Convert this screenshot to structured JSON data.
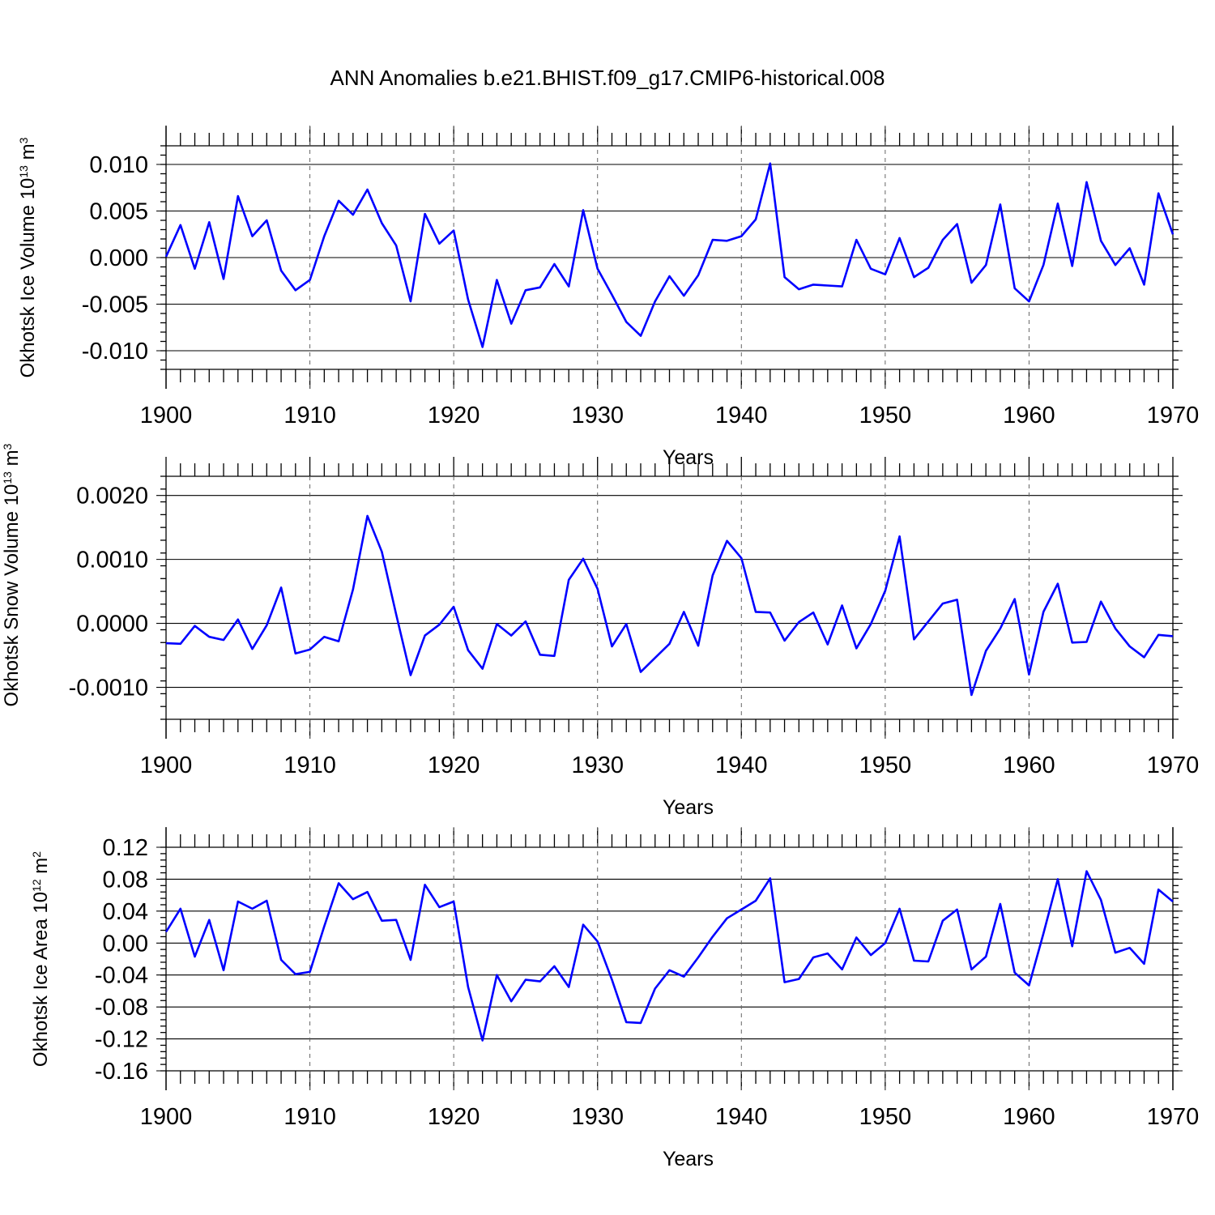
{
  "title": "ANN Anomalies b.e21.BHIST.f09_g17.CMIP6-historical.008",
  "line_color": "#0000ff",
  "chart_data": [
    {
      "type": "line",
      "ylabel": {
        "main": "Okhotsk Ice Volume 10",
        "exp": "13",
        "unit": " m",
        "unit_exp": "3"
      },
      "xlabel": "Years",
      "xlim": [
        1900,
        1970
      ],
      "ylim": [
        -0.012,
        0.012
      ],
      "x_ticks": [
        1900,
        1910,
        1920,
        1930,
        1940,
        1950,
        1960,
        1970
      ],
      "x_tick_labels": [
        "1900",
        "1910",
        "1920",
        "1930",
        "1940",
        "1950",
        "1960",
        "1970"
      ],
      "y_ticks": [
        0.01,
        0.005,
        0.0,
        -0.005,
        -0.01
      ],
      "y_tick_labels": [
        "0.010",
        "0.005",
        "0.000",
        "-0.005",
        "-0.010"
      ],
      "y_minor_step": 0.001,
      "vertical_gridlines": "dashed at decades",
      "series": [
        {
          "values": [
            0.0001,
            0.0035,
            -0.0012,
            0.0038,
            -0.0023,
            0.0066,
            0.0023,
            0.004,
            -0.0014,
            -0.0035,
            -0.0024,
            0.0023,
            0.0061,
            0.0046,
            0.0073,
            0.0037,
            0.0013,
            -0.0047,
            0.0047,
            0.0015,
            0.0029,
            -0.0045,
            -0.0096,
            -0.0024,
            -0.0071,
            -0.0035,
            -0.0032,
            -0.0007,
            -0.0031,
            0.0051,
            -0.0012,
            -0.004,
            -0.0069,
            -0.0084,
            -0.0047,
            -0.002,
            -0.0041,
            -0.0019,
            0.0019,
            0.0018,
            0.0023,
            0.0041,
            0.0101,
            -0.0021,
            -0.0034,
            -0.0029,
            -0.003,
            -0.0031,
            0.0019,
            -0.0012,
            -0.0018,
            0.0021,
            -0.0021,
            -0.0011,
            0.0019,
            0.0036,
            -0.0027,
            -0.0008,
            0.0057,
            -0.0033,
            -0.0047,
            -0.0008,
            0.0058,
            -0.0009,
            0.0081,
            0.0018,
            -0.0008,
            0.001,
            -0.0029,
            0.0069,
            0.0025
          ]
        }
      ]
    },
    {
      "type": "line",
      "ylabel": {
        "main": "Okhotsk Snow Volume 10",
        "exp": "13",
        "unit": " m",
        "unit_exp": "3"
      },
      "xlabel": "Years",
      "xlim": [
        1900,
        1970
      ],
      "ylim": [
        -0.0015,
        0.0023
      ],
      "x_ticks": [
        1900,
        1910,
        1920,
        1930,
        1940,
        1950,
        1960,
        1970
      ],
      "x_tick_labels": [
        "1900",
        "1910",
        "1920",
        "1930",
        "1940",
        "1950",
        "1960",
        "1970"
      ],
      "y_ticks": [
        0.002,
        0.001,
        0.0,
        -0.001
      ],
      "y_tick_labels": [
        "0.0020",
        "0.0010",
        "0.0000",
        "-0.0010"
      ],
      "y_minor_step": 0.0002,
      "vertical_gridlines": "dashed at decades",
      "series": [
        {
          "values": [
            -0.00031,
            -0.00032,
            -4e-05,
            -0.00021,
            -0.00026,
            6e-05,
            -0.0004,
            -3e-05,
            0.00056,
            -0.00047,
            -0.00041,
            -0.00021,
            -0.00028,
            0.00053,
            0.00168,
            0.00112,
            0.00014,
            -0.00081,
            -0.00019,
            -2e-05,
            0.00026,
            -0.00042,
            -0.00071,
            -1e-05,
            -0.00019,
            3e-05,
            -0.00049,
            -0.00051,
            0.00068,
            0.00101,
            0.00054,
            -0.00036,
            -1e-05,
            -0.00076,
            -0.00054,
            -0.00032,
            0.00018,
            -0.00035,
            0.00075,
            0.00129,
            0.00102,
            0.00018,
            0.00017,
            -0.00027,
            2e-05,
            0.00017,
            -0.00033,
            0.00028,
            -0.00039,
            -1e-05,
            0.00051,
            0.00136,
            -0.00025,
            3e-05,
            0.00031,
            0.00037,
            -0.00112,
            -0.00043,
            -8e-05,
            0.00038,
            -0.0008,
            0.00018,
            0.00062,
            -0.0003,
            -0.00029,
            0.00034,
            -8e-05,
            -0.00036,
            -0.00053,
            -0.00018,
            -0.0002
          ]
        }
      ]
    },
    {
      "type": "line",
      "ylabel": {
        "main": "Okhotsk Ice Area 10",
        "exp": "12",
        "unit": " m",
        "unit_exp": "2"
      },
      "xlabel": "Years",
      "xlim": [
        1900,
        1970
      ],
      "ylim": [
        -0.16,
        0.12
      ],
      "x_ticks": [
        1900,
        1910,
        1920,
        1930,
        1940,
        1950,
        1960,
        1970
      ],
      "x_tick_labels": [
        "1900",
        "1910",
        "1920",
        "1930",
        "1940",
        "1950",
        "1960",
        "1970"
      ],
      "y_ticks": [
        0.12,
        0.08,
        0.04,
        0.0,
        -0.04,
        -0.08,
        -0.12,
        -0.16
      ],
      "y_tick_labels": [
        "0.12",
        "0.08",
        "0.04",
        "0.00",
        "-0.04",
        "-0.08",
        "-0.12",
        "-0.16"
      ],
      "y_minor_step": 0.008,
      "vertical_gridlines": "dashed at decades",
      "series": [
        {
          "values": [
            0.014,
            0.043,
            -0.017,
            0.029,
            -0.034,
            0.052,
            0.043,
            0.053,
            -0.021,
            -0.039,
            -0.036,
            0.021,
            0.075,
            0.055,
            0.064,
            0.028,
            0.029,
            -0.021,
            0.073,
            0.045,
            0.052,
            -0.055,
            -0.122,
            -0.04,
            -0.073,
            -0.046,
            -0.048,
            -0.029,
            -0.055,
            0.023,
            0.002,
            -0.046,
            -0.099,
            -0.1,
            -0.057,
            -0.034,
            -0.042,
            -0.018,
            0.008,
            0.031,
            0.042,
            0.053,
            0.081,
            -0.049,
            -0.045,
            -0.018,
            -0.013,
            -0.033,
            0.007,
            -0.015,
            0.0,
            0.043,
            -0.022,
            -0.023,
            0.028,
            0.042,
            -0.033,
            -0.017,
            0.049,
            -0.037,
            -0.053,
            0.012,
            0.08,
            -0.004,
            0.09,
            0.054,
            -0.012,
            -0.006,
            -0.026,
            0.067,
            0.052
          ]
        }
      ]
    }
  ]
}
